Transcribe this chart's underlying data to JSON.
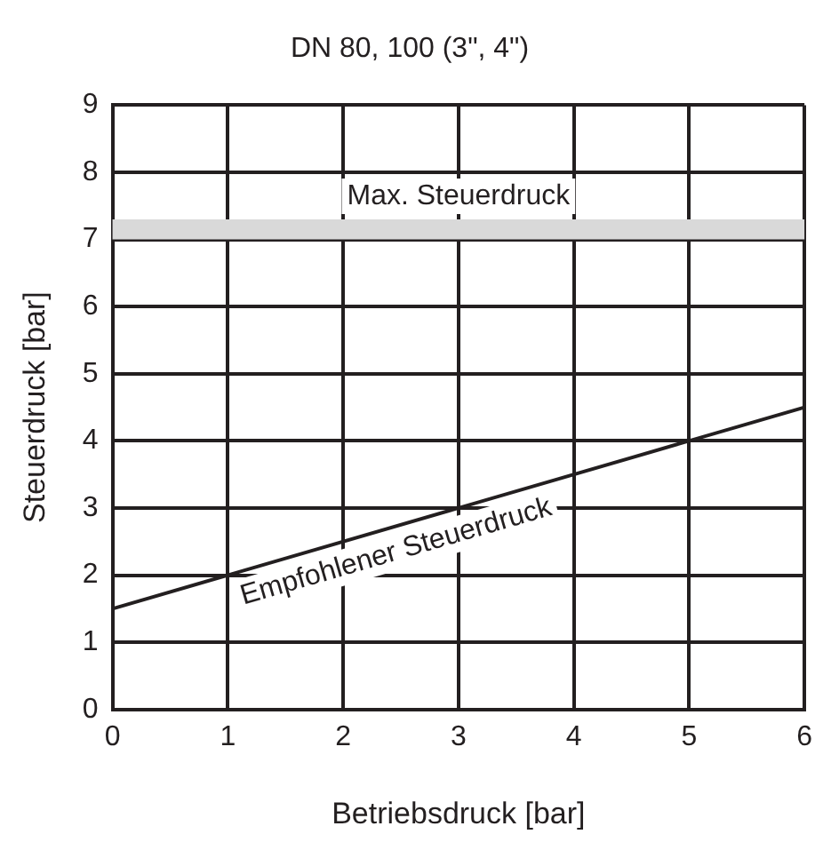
{
  "chart_data": {
    "type": "line",
    "title": "DN 80, 100 (3\", 4\")",
    "xlabel": "Betriebsdruck [bar]",
    "ylabel": "Steuerdruck [bar]",
    "x": [
      0,
      6
    ],
    "series": [
      {
        "name": "Empfohlener Steuerdruck",
        "color": "#231f20",
        "values": [
          1.5,
          4.5
        ]
      }
    ],
    "xlim": [
      0,
      6
    ],
    "xticks": [
      0,
      1,
      2,
      3,
      4,
      5,
      6
    ],
    "ylim": [
      0,
      9
    ],
    "yticks": [
      0,
      1,
      2,
      3,
      4,
      5,
      6,
      7,
      8,
      9
    ],
    "bands": [
      {
        "axis": "y",
        "from": 7,
        "to": 7.3,
        "label": "Max. Steuerdruck",
        "color": "#d9d9d9"
      }
    ],
    "grid": true,
    "legend": false,
    "marker": "none",
    "line_style": "solid"
  }
}
